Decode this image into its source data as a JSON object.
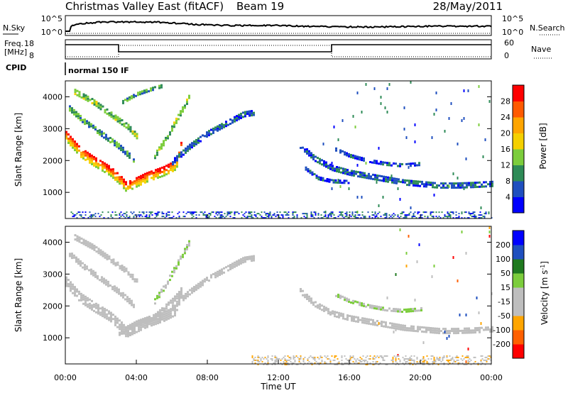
{
  "header": {
    "title": "Christmas Valley East (fitACF)",
    "beam": "Beam 19",
    "date": "28/May/2011"
  },
  "noise_panel": {
    "left_label": "N.Sky",
    "right_label": "N.Search",
    "left_ticks": [
      "10^5",
      "10^0"
    ],
    "right_ticks": [
      "10^5",
      "10^0"
    ]
  },
  "freq_panel": {
    "left_label_line1": "Freq.",
    "left_label_line2": "[MHz]",
    "right_label": "Nave",
    "left_ticks": [
      "18",
      "8"
    ],
    "right_ticks": [
      "60",
      "0"
    ]
  },
  "cpid": {
    "label": "CPID",
    "value": "normal 150 IF"
  },
  "axes": {
    "ylabel": "Slant Range [km]",
    "xlabel": "Time UT",
    "y_ticks": [
      "1000",
      "2000",
      "3000",
      "4000"
    ],
    "x_ticks": [
      "00:00",
      "04:00",
      "08:00",
      "12:00",
      "16:00",
      "20:00",
      "00:00"
    ]
  },
  "colors": {
    "power": [
      "#0000ff",
      "#1f4fbf",
      "#2e8b57",
      "#7ccd3c",
      "#f5d000",
      "#ffa500",
      "#ff5a00",
      "#ff0000"
    ],
    "velocity": [
      "#ff0000",
      "#ff6000",
      "#ffa500",
      "#bebebe",
      "#bebebe",
      "#7ccd3c",
      "#1f7a1f",
      "#1f4fbf",
      "#0000ff"
    ],
    "velocity_ground": "#bebebe"
  },
  "chart_data": [
    {
      "type": "heatmap",
      "name": "power",
      "xlim": [
        0,
        24
      ],
      "ylim": [
        180,
        4500
      ],
      "colorbar": {
        "label": "Power [dB]",
        "ticks": [
          "4",
          "8",
          "12",
          "16",
          "20",
          "24",
          "28"
        ],
        "range": [
          0,
          30
        ]
      },
      "features": [
        {
          "kind": "band",
          "x": [
            0.0,
            0.8,
            1.6,
            2.5,
            3.1,
            3.4,
            4.5,
            5.5,
            6.2,
            6.5
          ],
          "y": [
            2800,
            2300,
            2000,
            1700,
            1400,
            1200,
            1500,
            1700,
            1900,
            2500
          ],
          "thickness": 280,
          "value": 20
        },
        {
          "kind": "band",
          "x": [
            0.2,
            1.0,
            2.0,
            3.0,
            3.8
          ],
          "y": [
            3700,
            3300,
            2900,
            2500,
            2100
          ],
          "thickness": 200,
          "value": 10
        },
        {
          "kind": "band",
          "x": [
            0.5,
            1.5,
            2.5,
            3.5,
            4.0
          ],
          "y": [
            4200,
            3900,
            3500,
            3100,
            2800
          ],
          "thickness": 160,
          "value": 12
        },
        {
          "kind": "band",
          "x": [
            5.0,
            5.6,
            6.1,
            6.6,
            7.0
          ],
          "y": [
            2200,
            2700,
            3200,
            3700,
            4100
          ],
          "thickness": 180,
          "value": 12
        },
        {
          "kind": "band",
          "x": [
            6.0,
            7.0,
            8.0,
            9.0,
            10.0,
            10.6
          ],
          "y": [
            2000,
            2500,
            2900,
            3200,
            3500,
            3550
          ],
          "thickness": 170,
          "value": 6
        },
        {
          "kind": "band",
          "x": [
            3.2,
            4.0,
            4.8,
            5.4
          ],
          "y": [
            3900,
            4150,
            4300,
            4400
          ],
          "thickness": 130,
          "value": 10
        },
        {
          "kind": "band",
          "x": [
            13.2,
            14.0,
            15.0,
            16.0,
            17.0,
            18.0,
            19.0,
            20.0,
            21.0,
            22.0,
            23.0,
            24.0
          ],
          "y": [
            2500,
            2100,
            1800,
            1650,
            1550,
            1450,
            1350,
            1300,
            1250,
            1250,
            1270,
            1300
          ],
          "thickness": 140,
          "value": 6
        },
        {
          "kind": "band",
          "x": [
            15.2,
            16.0,
            17.0,
            18.0,
            19.0,
            20.0
          ],
          "y": [
            2400,
            2200,
            2050,
            1950,
            1900,
            1950
          ],
          "thickness": 110,
          "value": 5
        },
        {
          "kind": "band",
          "x": [
            13.5,
            14.2,
            15.0,
            16.0
          ],
          "y": [
            1800,
            1500,
            1400,
            1380
          ],
          "thickness": 110,
          "value": 5
        },
        {
          "kind": "scatter",
          "x": [
            14.5,
            24.0
          ],
          "y": [
            250,
            4500
          ],
          "density": 0.012,
          "value": 4
        },
        {
          "kind": "ground",
          "x": [
            0.3,
            24.0
          ],
          "y": [
            180,
            400
          ],
          "value": 6
        }
      ]
    },
    {
      "type": "heatmap",
      "name": "velocity",
      "xlim": [
        0,
        24
      ],
      "ylim": [
        180,
        4500
      ],
      "colorbar": {
        "label": "Velocity [m s^-1]",
        "ticks": [
          "-200",
          "-100",
          "-50",
          "-15",
          "15",
          "50",
          "100",
          "200"
        ],
        "range": [
          -250,
          250
        ]
      },
      "features": [
        {
          "kind": "band",
          "x": [
            0.0,
            0.8,
            1.6,
            2.5,
            3.1,
            3.4,
            4.5,
            5.5,
            6.2,
            6.5
          ],
          "y": [
            2800,
            2300,
            2000,
            1700,
            1400,
            1200,
            1500,
            1700,
            1900,
            2500
          ],
          "thickness": 280,
          "value": 0
        },
        {
          "kind": "band",
          "x": [
            3.0,
            4.0,
            5.0,
            6.0,
            6.5
          ],
          "y": [
            1200,
            1500,
            1700,
            2200,
            2500
          ],
          "thickness": 150,
          "value": -60
        },
        {
          "kind": "band",
          "x": [
            0.2,
            1.0,
            2.0,
            3.0,
            3.8
          ],
          "y": [
            3700,
            3300,
            2900,
            2500,
            2100
          ],
          "thickness": 200,
          "value": 0
        },
        {
          "kind": "band",
          "x": [
            0.5,
            1.5,
            2.5,
            3.5,
            4.0
          ],
          "y": [
            4200,
            3900,
            3500,
            3100,
            2800
          ],
          "thickness": 160,
          "value": -55
        },
        {
          "kind": "band",
          "x": [
            5.0,
            5.6,
            6.1,
            6.6,
            7.0
          ],
          "y": [
            2200,
            2700,
            3200,
            3700,
            4100
          ],
          "thickness": 180,
          "value": 25
        },
        {
          "kind": "band",
          "x": [
            6.0,
            7.0,
            8.0,
            9.0,
            10.0,
            10.6
          ],
          "y": [
            2000,
            2500,
            2900,
            3200,
            3500,
            3550
          ],
          "thickness": 170,
          "value": -60
        },
        {
          "kind": "band",
          "x": [
            13.2,
            14.0,
            15.0,
            16.0,
            17.0,
            18.0,
            19.0,
            20.0,
            21.0,
            22.0,
            23.0,
            24.0
          ],
          "y": [
            2500,
            2100,
            1800,
            1650,
            1550,
            1450,
            1350,
            1300,
            1250,
            1250,
            1270,
            1300
          ],
          "thickness": 140,
          "value": 0
        },
        {
          "kind": "band",
          "x": [
            15.2,
            16.0,
            17.0,
            18.0,
            19.0,
            20.0
          ],
          "y": [
            2400,
            2200,
            2050,
            1950,
            1900,
            1950
          ],
          "thickness": 110,
          "value": 30
        },
        {
          "kind": "scatter",
          "x": [
            17.5,
            24.0
          ],
          "y": [
            250,
            4500
          ],
          "density": 0.01,
          "value": -150
        },
        {
          "kind": "ground",
          "x": [
            10.5,
            24.0
          ],
          "y": [
            180,
            450
          ],
          "value": -70
        }
      ]
    }
  ]
}
